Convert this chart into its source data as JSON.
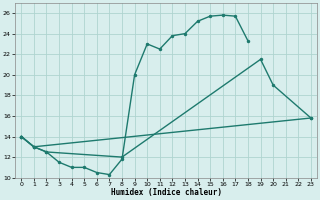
{
  "line1_x": [
    0,
    1,
    2,
    3,
    4,
    5,
    6,
    7,
    8,
    9,
    10,
    11,
    12,
    13,
    14,
    15,
    16,
    17,
    18
  ],
  "line1_y": [
    14.0,
    13.0,
    12.5,
    11.5,
    11.0,
    11.0,
    10.5,
    10.3,
    11.8,
    20.0,
    23.0,
    22.5,
    23.8,
    24.0,
    25.2,
    25.7,
    25.8,
    25.7,
    23.3
  ],
  "line2_x": [
    0,
    1,
    2,
    8,
    19,
    20,
    23
  ],
  "line2_y": [
    14.0,
    13.0,
    12.5,
    12.0,
    21.5,
    19.0,
    15.8
  ],
  "line3_x": [
    0,
    1,
    23
  ],
  "line3_y": [
    14.0,
    13.0,
    15.8
  ],
  "bg_color": "#d8eeed",
  "grid_color": "#afd4d0",
  "line_color": "#1e7a6e",
  "xlim": [
    -0.5,
    23.5
  ],
  "ylim": [
    10,
    27
  ],
  "yticks": [
    10,
    12,
    14,
    16,
    18,
    20,
    22,
    24,
    26
  ],
  "xticks": [
    0,
    1,
    2,
    3,
    4,
    5,
    6,
    7,
    8,
    9,
    10,
    11,
    12,
    13,
    14,
    15,
    16,
    17,
    18,
    19,
    20,
    21,
    22,
    23
  ],
  "xlabel": "Humidex (Indice chaleur)"
}
